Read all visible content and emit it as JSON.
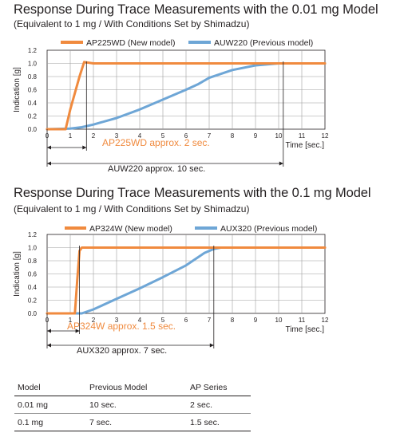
{
  "charts": [
    {
      "title": "Response During Trace Measurements with the 0.01 mg Model",
      "subtitle": "(Equivalent to 1 mg / With Conditions Set by Shimadzu)",
      "annotation_new": "AP225WD approx. 2 sec.",
      "annotation_prev": "AUW220 approx. 10 sec."
    },
    {
      "title": "Response During Trace Measurements with the 0.1 mg Model",
      "subtitle": "(Equivalent to 1 mg / With Conditions Set by Shimadzu)",
      "annotation_new": "AP324W approx. 1.5 sec.",
      "annotation_prev": "AUX320 approx. 7 sec."
    }
  ],
  "chart_data": [
    {
      "type": "line",
      "title": "Response During Trace Measurements with the 0.01 mg Model",
      "xlabel": "Time [sec.]",
      "ylabel": "Indication [g]",
      "xlim": [
        0,
        12
      ],
      "ylim": [
        0,
        1.2
      ],
      "x_ticks": [
        "0",
        "1",
        "2",
        "3",
        "4",
        "5",
        "6",
        "7",
        "8",
        "9",
        "10",
        "11",
        "12"
      ],
      "y_ticks": [
        "0.0",
        "0.2",
        "0.4",
        "0.6",
        "0.8",
        "1.0",
        "1.2"
      ],
      "grid": true,
      "legend_position": "top",
      "series": [
        {
          "name": "AP225WD (New model)",
          "color": "#f08a3e",
          "points": [
            [
              0,
              0
            ],
            [
              0.8,
              0
            ],
            [
              1.0,
              0.3
            ],
            [
              1.2,
              0.55
            ],
            [
              1.4,
              0.8
            ],
            [
              1.6,
              1.02
            ],
            [
              2.0,
              1.0
            ],
            [
              12,
              1.0
            ]
          ]
        },
        {
          "name": "AUW220 (Previous model)",
          "color": "#6ea6d6",
          "points": [
            [
              0,
              0
            ],
            [
              1.0,
              0.01
            ],
            [
              1.5,
              0.03
            ],
            [
              2,
              0.07
            ],
            [
              3,
              0.17
            ],
            [
              4,
              0.3
            ],
            [
              5,
              0.45
            ],
            [
              6,
              0.6
            ],
            [
              6.5,
              0.68
            ],
            [
              7,
              0.78
            ],
            [
              8,
              0.9
            ],
            [
              9,
              0.97
            ],
            [
              10,
              1.0
            ],
            [
              12,
              1.0
            ]
          ]
        }
      ],
      "markers": [
        {
          "label": "AP225WD approx. 2 sec.",
          "start": 0,
          "end": 1.7,
          "color": "#f08a3e"
        },
        {
          "label": "AUW220 approx. 10 sec.",
          "start": 0,
          "end": 10.2,
          "color": "#231f20"
        }
      ]
    },
    {
      "type": "line",
      "title": "Response During Trace Measurements with the 0.1 mg Model",
      "xlabel": "Time [sec.]",
      "ylabel": "Indication [g]",
      "xlim": [
        0,
        12
      ],
      "ylim": [
        0,
        1.2
      ],
      "x_ticks": [
        "0",
        "1",
        "2",
        "3",
        "4",
        "5",
        "6",
        "7",
        "8",
        "9",
        "10",
        "11",
        "12"
      ],
      "y_ticks": [
        "0.0",
        "0.2",
        "0.4",
        "0.6",
        "0.8",
        "1.0",
        "1.2"
      ],
      "grid": true,
      "legend_position": "top",
      "series": [
        {
          "name": "AP324W (New model)",
          "color": "#f08a3e",
          "points": [
            [
              0,
              0
            ],
            [
              1.2,
              0
            ],
            [
              1.3,
              0.5
            ],
            [
              1.4,
              0.95
            ],
            [
              1.5,
              1.0
            ],
            [
              12,
              1.0
            ]
          ]
        },
        {
          "name": "AUX320 (Previous model)",
          "color": "#6ea6d6",
          "points": [
            [
              0,
              0
            ],
            [
              1.5,
              0
            ],
            [
              2,
              0.06
            ],
            [
              3,
              0.22
            ],
            [
              4,
              0.38
            ],
            [
              5,
              0.55
            ],
            [
              6,
              0.73
            ],
            [
              6.8,
              0.92
            ],
            [
              7.2,
              0.98
            ],
            [
              7.5,
              1.0
            ],
            [
              12,
              1.0
            ]
          ]
        }
      ],
      "markers": [
        {
          "label": "AP324W approx. 1.5 sec.",
          "start": 0,
          "end": 1.4,
          "color": "#f08a3e"
        },
        {
          "label": "AUX320 approx. 7 sec.",
          "start": 0,
          "end": 7.2,
          "color": "#231f20"
        }
      ]
    }
  ],
  "table": {
    "headers": [
      "Model",
      "Previous Model",
      "AP Series"
    ],
    "rows": [
      [
        "0.01 mg",
        "10 sec.",
        "2 sec."
      ],
      [
        "0.1 mg",
        "7 sec.",
        "1.5 sec."
      ]
    ]
  }
}
